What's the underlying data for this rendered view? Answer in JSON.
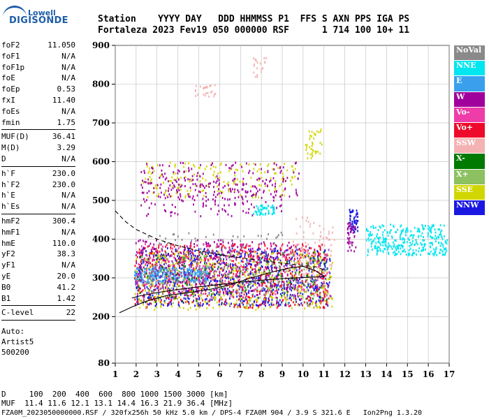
{
  "logo": {
    "top": "Lowell",
    "main": "DIGISONDE"
  },
  "header": {
    "line1": "Station    YYYY DAY   DDD HHMMSS P1  FFS S AXN PPS IGA PS",
    "line2": "Fortaleza 2023 Fev19 050 000000 RSF      1 714 100 10+ 11"
  },
  "params": [
    {
      "label": "foF2",
      "value": "11.050"
    },
    {
      "label": "foF1",
      "value": "N/A"
    },
    {
      "label": "foF1p",
      "value": "N/A"
    },
    {
      "label": "foE",
      "value": "N/A"
    },
    {
      "label": "foEp",
      "value": "0.53"
    },
    {
      "label": "fxI",
      "value": "11.40"
    },
    {
      "label": "foEs",
      "value": "N/A"
    },
    {
      "label": "fmin",
      "value": "1.75"
    },
    {
      "sep": true
    },
    {
      "label": "MUF(D)",
      "value": "36.41"
    },
    {
      "label": "M(D)",
      "value": "3.29"
    },
    {
      "label": "D",
      "value": "N/A"
    },
    {
      "sep": true
    },
    {
      "label": "h`F",
      "value": "230.0"
    },
    {
      "label": "h`F2",
      "value": "230.0"
    },
    {
      "label": "h`E",
      "value": "N/A"
    },
    {
      "label": "h`Es",
      "value": "N/A"
    },
    {
      "sep": true
    },
    {
      "label": "hmF2",
      "value": "300.4"
    },
    {
      "label": "hmF1",
      "value": "N/A"
    },
    {
      "label": "hmE",
      "value": "110.0"
    },
    {
      "label": "yF2",
      "value": "38.3"
    },
    {
      "label": "yF1",
      "value": "N/A"
    },
    {
      "label": "yE",
      "value": "20.0"
    },
    {
      "label": "B0",
      "value": "41.2"
    },
    {
      "label": "B1",
      "value": "1.42"
    },
    {
      "sep": true
    },
    {
      "label": "C-level",
      "value": "22"
    },
    {
      "sep": true
    }
  ],
  "auto": [
    "Auto:",
    "Artist5",
    "500200"
  ],
  "legend": [
    {
      "label": "NoVal",
      "color": "#8a8a8a"
    },
    {
      "label": "NNE",
      "color": "#00e6f0"
    },
    {
      "label": "E",
      "color": "#3aa0ee"
    },
    {
      "label": "W",
      "color": "#a0009c"
    },
    {
      "label": "Vo-",
      "color": "#ee3ca8"
    },
    {
      "label": "Vo+",
      "color": "#ee0a2a"
    },
    {
      "label": "SSW",
      "color": "#f4b2b2"
    },
    {
      "label": "X-",
      "color": "#007a00"
    },
    {
      "label": "X+",
      "color": "#8cc060"
    },
    {
      "label": "SSE",
      "color": "#d2d600"
    },
    {
      "label": "NNW",
      "color": "#1a18e0"
    }
  ],
  "bottom": {
    "line1": "D     100  200  400  600  800 1000 1500 3000 [km]",
    "line2": "MUF  11.4 11.6 12.1 13.1 14.4 16.3 21.9 36.4 [MHz]",
    "line3": "FZA0M_2023050000000.RSF / 320fx256h 50 kHz 5.0 km / DPS-4 FZA0M 904 / 3.9 S 321.6 E   Ion2Png 1.3.20"
  },
  "chart_data": {
    "type": "scatter",
    "xlim": [
      1,
      17
    ],
    "ylim": [
      80,
      900
    ],
    "x_ticks": [
      1,
      2,
      3,
      4,
      5,
      6,
      7,
      8,
      9,
      10,
      11,
      12,
      13,
      14,
      15,
      16,
      17
    ],
    "y_ticks": [
      80,
      200,
      300,
      400,
      500,
      600,
      700,
      800,
      900
    ],
    "grid": true,
    "legend_position": "right",
    "series": [
      {
        "name": "trace-o",
        "line": "solid",
        "color": "#000000",
        "points": [
          [
            1.8,
            248
          ],
          [
            2.2,
            254
          ],
          [
            3,
            262
          ],
          [
            4,
            270
          ],
          [
            5,
            277
          ],
          [
            6,
            283
          ],
          [
            7,
            289
          ],
          [
            8,
            294
          ],
          [
            9,
            298
          ],
          [
            10,
            301
          ],
          [
            10.8,
            303
          ],
          [
            11.05,
            303
          ]
        ]
      },
      {
        "name": "trace-x",
        "line": "dashed",
        "color": "#000000",
        "points": [
          [
            1.0,
            473
          ],
          [
            1.5,
            445
          ],
          [
            2,
            425
          ],
          [
            3,
            400
          ],
          [
            4,
            383
          ],
          [
            5,
            370
          ],
          [
            6,
            360
          ],
          [
            7,
            352
          ],
          [
            8,
            345
          ],
          [
            9,
            338
          ],
          [
            10,
            332
          ],
          [
            10.7,
            328
          ],
          [
            11,
            320
          ]
        ]
      },
      {
        "name": "trace-profile",
        "line": "solid",
        "color": "#000000",
        "points": [
          [
            1.2,
            210
          ],
          [
            1.8,
            225
          ],
          [
            2.5,
            240
          ],
          [
            3.5,
            255
          ],
          [
            4.5,
            262
          ],
          [
            5.5,
            270
          ],
          [
            6.5,
            282
          ],
          [
            7.5,
            300
          ],
          [
            8.5,
            315
          ],
          [
            9.3,
            325
          ],
          [
            10,
            330
          ],
          [
            10.6,
            318
          ],
          [
            11,
            305
          ]
        ]
      }
    ],
    "echo_clusters": [
      {
        "color": "#1a18e0",
        "x": [
          1.9,
          11.3
        ],
        "y": [
          230,
          380
        ],
        "n": 900
      },
      {
        "color": "#ee0a2a",
        "x": [
          1.9,
          11.2
        ],
        "y": [
          225,
          390
        ],
        "n": 700
      },
      {
        "color": "#d2d600",
        "x": [
          1.9,
          11.4
        ],
        "y": [
          220,
          370
        ],
        "n": 450
      },
      {
        "color": "#3aa0ee",
        "x": [
          1.9,
          5.5
        ],
        "y": [
          290,
          330
        ],
        "n": 280
      },
      {
        "color": "#a0009c",
        "x": [
          1.9,
          9.5
        ],
        "y": [
          255,
          400
        ],
        "n": 300
      },
      {
        "color": "#ee3ca8",
        "x": [
          2.0,
          11.3
        ],
        "y": [
          250,
          390
        ],
        "n": 220
      },
      {
        "color": "#007a00",
        "x": [
          1.9,
          11.2
        ],
        "y": [
          240,
          370
        ],
        "n": 120
      },
      {
        "color": "#8a8a8a",
        "x": [
          2.5,
          10.0
        ],
        "y": [
          250,
          420
        ],
        "n": 120
      },
      {
        "color": "#8cc060",
        "x": [
          2.0,
          11.2
        ],
        "y": [
          230,
          360
        ],
        "n": 150
      },
      {
        "color": "#f4b2b2",
        "x": [
          9.5,
          11.5
        ],
        "y": [
          300,
          460
        ],
        "n": 100
      },
      {
        "color": "#00e6f0",
        "x": [
          13.0,
          16.9
        ],
        "y": [
          360,
          440
        ],
        "n": 330
      },
      {
        "color": "#a0009c",
        "x": [
          2.2,
          9.0
        ],
        "y": [
          460,
          560
        ],
        "n": 180
      },
      {
        "color": "#d2d600",
        "x": [
          2.3,
          9.6
        ],
        "y": [
          510,
          600
        ],
        "n": 180
      },
      {
        "color": "#a0009c",
        "x": [
          2.2,
          9.8
        ],
        "y": [
          510,
          600
        ],
        "n": 150
      },
      {
        "color": "#1a18e0",
        "x": [
          12.2,
          12.6
        ],
        "y": [
          420,
          480
        ],
        "n": 50
      },
      {
        "color": "#a0009c",
        "x": [
          12.1,
          12.5
        ],
        "y": [
          370,
          450
        ],
        "n": 40
      },
      {
        "color": "#00e6f0",
        "x": [
          7.6,
          8.6
        ],
        "y": [
          465,
          490
        ],
        "n": 50
      },
      {
        "color": "#d2d600",
        "x": [
          10.0,
          10.9
        ],
        "y": [
          610,
          690
        ],
        "n": 40
      },
      {
        "color": "#f4b2b2",
        "x": [
          4.8,
          5.8
        ],
        "y": [
          770,
          800
        ],
        "n": 25
      },
      {
        "color": "#f4b2b2",
        "x": [
          7.6,
          8.3
        ],
        "y": [
          820,
          870
        ],
        "n": 20
      }
    ]
  }
}
